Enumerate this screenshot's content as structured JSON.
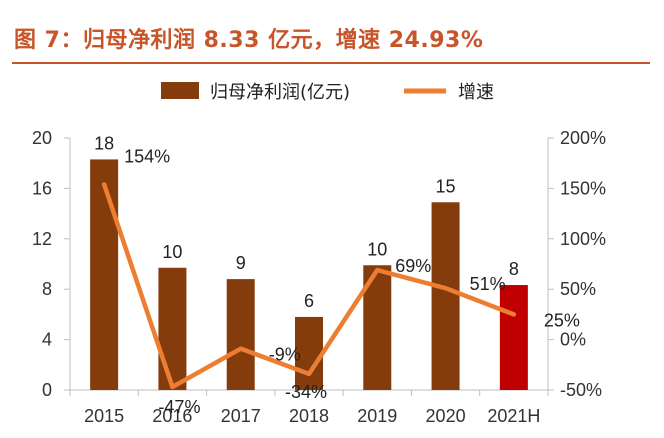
{
  "figure": {
    "title": "图 7：归母净利润 8.33 亿元，增速 24.93%"
  },
  "colors": {
    "title": "#c8552a",
    "bar": "#843c0c",
    "bar_highlight": "#c00000",
    "line": "#ed7d31",
    "axis": "#bfbfbf"
  },
  "chart_data": {
    "type": "bar",
    "categories": [
      "2015",
      "2016",
      "2017",
      "2018",
      "2019",
      "2020",
      "2021H"
    ],
    "series": [
      {
        "name": "归母净利润(亿元)",
        "type": "bar",
        "axis": "left",
        "values": [
          18.3,
          9.7,
          8.8,
          5.8,
          9.9,
          14.9,
          8.33
        ],
        "data_labels": [
          "18",
          "10",
          "9",
          "6",
          "10",
          "15",
          "8"
        ]
      },
      {
        "name": "增速",
        "type": "line",
        "axis": "right",
        "values": [
          154,
          -47,
          -9,
          -34,
          69,
          51,
          25
        ],
        "data_labels": [
          "154%",
          "-47%",
          "-9%",
          "-34%",
          "69%",
          "51%",
          "25%"
        ]
      }
    ],
    "y_left": {
      "min": 0,
      "max": 20,
      "ticks": [
        "0",
        "4",
        "8",
        "12",
        "16",
        "20"
      ]
    },
    "y_right": {
      "min": -50,
      "max": 200,
      "ticks": [
        "-50%",
        "0%",
        "50%",
        "100%",
        "150%",
        "200%"
      ]
    },
    "legend": {
      "position": "top"
    },
    "grid": false
  }
}
